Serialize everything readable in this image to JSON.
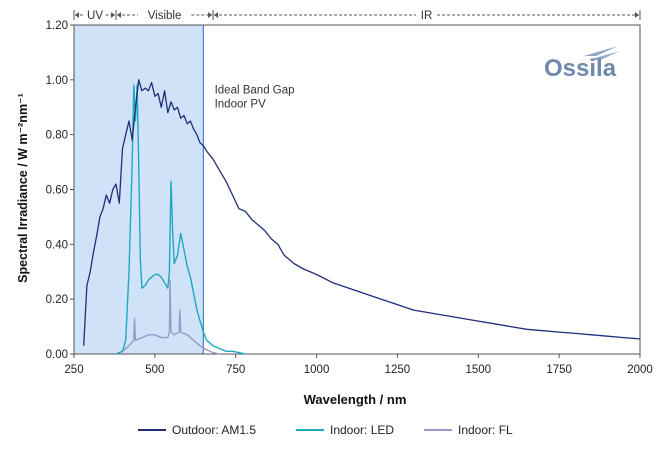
{
  "chart_data": {
    "type": "line",
    "title": "",
    "xlabel": "Wavelength / nm",
    "ylabel": "Spectral Irradiance / W m⁻²nm⁻¹",
    "xlim": [
      250,
      2000
    ],
    "ylim": [
      0,
      1.2
    ],
    "xticks": [
      {
        "value": 250,
        "label": "250"
      },
      {
        "value": 500,
        "label": "500"
      },
      {
        "value": 750,
        "label": "750"
      },
      {
        "value": 1000,
        "label": "1000"
      },
      {
        "value": 1250,
        "label": "1250"
      },
      {
        "value": 1500,
        "label": "1500"
      },
      {
        "value": 1750,
        "label": "1750"
      },
      {
        "value": 2000,
        "label": "2000"
      }
    ],
    "yticks": [
      {
        "value": 0,
        "label": "0.00"
      },
      {
        "value": 0.2,
        "label": "0.20"
      },
      {
        "value": 0.4,
        "label": "0.40"
      },
      {
        "value": 0.6,
        "label": "0.60"
      },
      {
        "value": 0.8,
        "label": "0.80"
      },
      {
        "value": 1.0,
        "label": "1.00"
      },
      {
        "value": 1.2,
        "label": "1.20"
      }
    ],
    "grid": false,
    "legend_position": "bottom",
    "regions": [
      {
        "label": "UV",
        "from": 250,
        "to": 380
      },
      {
        "label": "Visible",
        "from": 380,
        "to": 680
      },
      {
        "label": "IR",
        "from": 680,
        "to": 2000
      }
    ],
    "band_gap": {
      "from": 250,
      "to": 650,
      "color": "#cfe2f7",
      "edge_color": "#4a7fc0"
    },
    "annotation": {
      "lines": [
        "Ideal Band Gap",
        "Indoor PV"
      ],
      "x": 660,
      "y": 0.95
    },
    "logo": "Ossila",
    "series": [
      {
        "name": "Outdoor: AM1.5",
        "color": "#1f2f7a",
        "x": [
          280,
          290,
          300,
          310,
          320,
          330,
          340,
          350,
          360,
          370,
          380,
          390,
          400,
          410,
          420,
          430,
          440,
          450,
          460,
          470,
          480,
          490,
          500,
          510,
          520,
          530,
          540,
          550,
          560,
          570,
          580,
          590,
          600,
          610,
          620,
          630,
          640,
          650,
          660,
          680,
          700,
          720,
          740,
          760,
          780,
          800,
          820,
          840,
          860,
          880,
          900,
          930,
          960,
          1000,
          1050,
          1100,
          1150,
          1200,
          1250,
          1300,
          1350,
          1400,
          1450,
          1500,
          1550,
          1600,
          1650,
          1700,
          1750,
          1800,
          1850,
          1900,
          1950,
          2000
        ],
        "y": [
          0.03,
          0.25,
          0.3,
          0.37,
          0.43,
          0.5,
          0.53,
          0.58,
          0.55,
          0.6,
          0.62,
          0.55,
          0.75,
          0.8,
          0.85,
          0.78,
          0.9,
          1.0,
          0.96,
          0.97,
          0.96,
          0.99,
          0.94,
          0.95,
          0.9,
          0.96,
          0.88,
          0.92,
          0.89,
          0.9,
          0.86,
          0.87,
          0.84,
          0.85,
          0.82,
          0.8,
          0.77,
          0.76,
          0.74,
          0.71,
          0.67,
          0.63,
          0.58,
          0.53,
          0.52,
          0.49,
          0.47,
          0.45,
          0.42,
          0.4,
          0.36,
          0.33,
          0.31,
          0.29,
          0.26,
          0.24,
          0.22,
          0.2,
          0.18,
          0.16,
          0.15,
          0.14,
          0.13,
          0.12,
          0.11,
          0.1,
          0.09,
          0.085,
          0.08,
          0.075,
          0.07,
          0.065,
          0.06,
          0.055
        ]
      },
      {
        "name": "Indoor: LED",
        "color": "#1fa8bf",
        "x": [
          380,
          400,
          410,
          420,
          430,
          435,
          440,
          445,
          450,
          455,
          460,
          470,
          480,
          490,
          500,
          510,
          520,
          530,
          540,
          545,
          550,
          555,
          560,
          570,
          580,
          590,
          600,
          610,
          620,
          630,
          640,
          650,
          660,
          680,
          700,
          720,
          740,
          760,
          780
        ],
        "y": [
          0.0,
          0.01,
          0.05,
          0.3,
          0.7,
          0.98,
          0.85,
          0.98,
          0.7,
          0.35,
          0.24,
          0.25,
          0.27,
          0.28,
          0.29,
          0.29,
          0.28,
          0.26,
          0.24,
          0.3,
          0.63,
          0.45,
          0.33,
          0.36,
          0.44,
          0.38,
          0.32,
          0.28,
          0.22,
          0.16,
          0.12,
          0.08,
          0.05,
          0.03,
          0.02,
          0.01,
          0.01,
          0.005,
          0.0
        ]
      },
      {
        "name": "Indoor: FL",
        "color": "#9a9ac8",
        "x": [
          380,
          400,
          420,
          435,
          437,
          440,
          460,
          480,
          500,
          520,
          540,
          545,
          547,
          550,
          560,
          575,
          577,
          580,
          600,
          620,
          640,
          660,
          680,
          700
        ],
        "y": [
          0.0,
          0.01,
          0.03,
          0.05,
          0.13,
          0.05,
          0.06,
          0.07,
          0.07,
          0.06,
          0.06,
          0.08,
          0.27,
          0.08,
          0.07,
          0.08,
          0.16,
          0.08,
          0.07,
          0.05,
          0.03,
          0.015,
          0.005,
          0.0
        ]
      }
    ]
  }
}
